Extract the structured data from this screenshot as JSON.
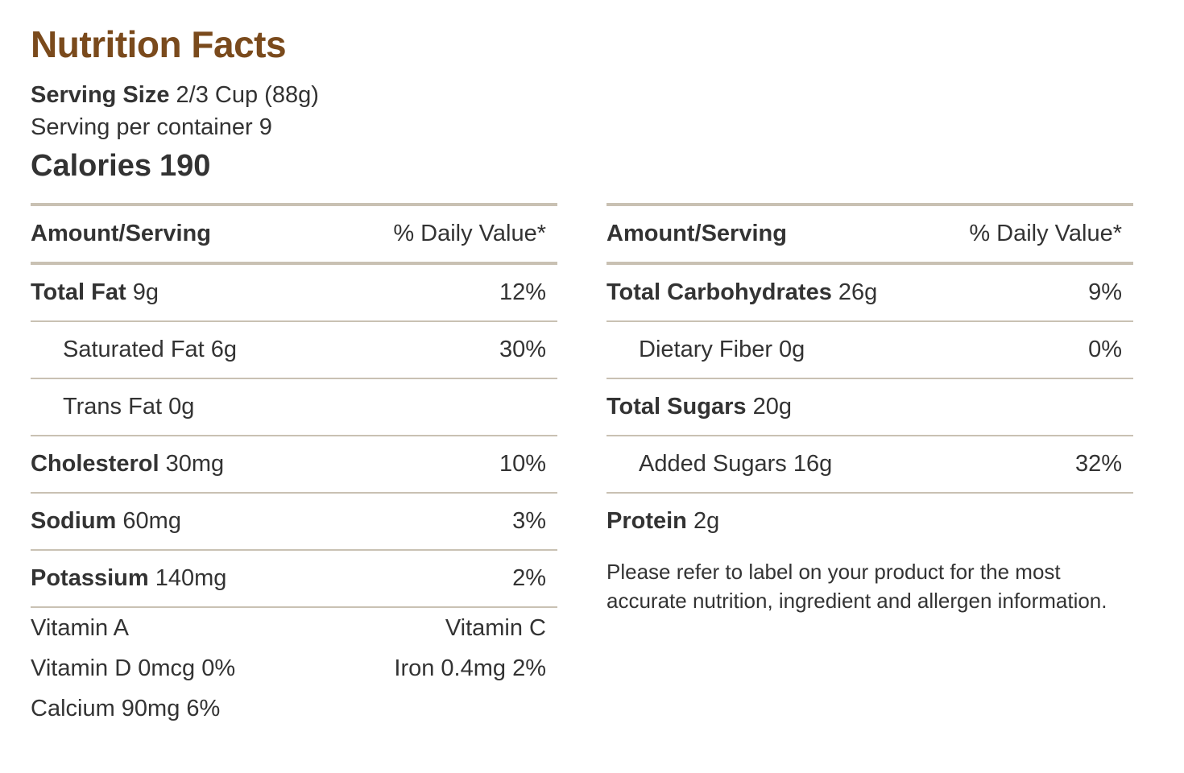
{
  "header": {
    "title": "Nutrition Facts",
    "serving_size_label": "Serving Size",
    "serving_size_value": "2/3 Cup (88g)",
    "servings_per_container": "Serving per container 9",
    "calories_label": "Calories",
    "calories_value": "190"
  },
  "left_panel": {
    "header": {
      "amount": "Amount/Serving",
      "dv": "% Daily Value*"
    },
    "rows": [
      {
        "name": "Total Fat",
        "amount": "9g",
        "dv": "12%"
      },
      {
        "name": "Saturated Fat 6g",
        "amount": "",
        "dv": "30%"
      },
      {
        "name": "Trans Fat 0g",
        "amount": "",
        "dv": ""
      },
      {
        "name": "Cholesterol",
        "amount": "30mg",
        "dv": "10%"
      },
      {
        "name": "Sodium",
        "amount": "60mg",
        "dv": "3%"
      },
      {
        "name": "Potassium",
        "amount": "140mg",
        "dv": "2%"
      }
    ],
    "vitamins": [
      {
        "left": "Vitamin A",
        "right": "Vitamin C"
      },
      {
        "left": "Vitamin D 0mcg 0%",
        "right": "Iron 0.4mg 2%"
      },
      {
        "left": "Calcium 90mg 6%",
        "right": ""
      }
    ]
  },
  "right_panel": {
    "header": {
      "amount": "Amount/Serving",
      "dv": "% Daily Value*"
    },
    "rows": [
      {
        "name": "Total Carbohydrates",
        "amount": "26g",
        "dv": "9%"
      },
      {
        "name": "Dietary Fiber 0g",
        "amount": "",
        "dv": "0%"
      },
      {
        "name": "Total Sugars",
        "amount": "20g",
        "dv": ""
      },
      {
        "name": "Added Sugars 16g",
        "amount": "",
        "dv": "32%"
      },
      {
        "name": "Protein",
        "amount": "2g",
        "dv": ""
      }
    ],
    "note": "Please refer to label on your product for the most accurate nutrition, ingredient and allergen information."
  },
  "colors": {
    "title": "#7a4a1c",
    "rule": "#c9c1b3",
    "text": "#333333"
  }
}
